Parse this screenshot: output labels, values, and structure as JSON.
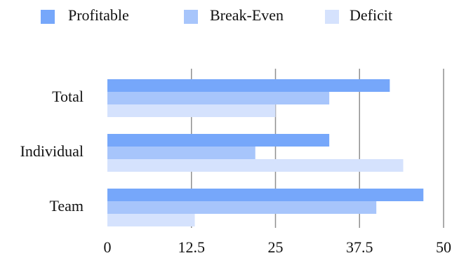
{
  "chart_data": {
    "type": "bar",
    "orientation": "horizontal",
    "categories": [
      "Total",
      "Individual",
      "Team"
    ],
    "series": [
      {
        "name": "Profitable",
        "color": "#76a7fa",
        "values": [
          42,
          33,
          47
        ]
      },
      {
        "name": "Break-Even",
        "color": "#a7c5fb",
        "values": [
          33,
          22,
          40
        ]
      },
      {
        "name": "Deficit",
        "color": "#d5e2fd",
        "values": [
          25,
          44,
          13
        ]
      }
    ],
    "xlim": [
      0,
      50
    ],
    "xticks": [
      "0",
      "12.5",
      "25",
      "37.5",
      "50"
    ],
    "grid": true,
    "legend_position": "top"
  }
}
